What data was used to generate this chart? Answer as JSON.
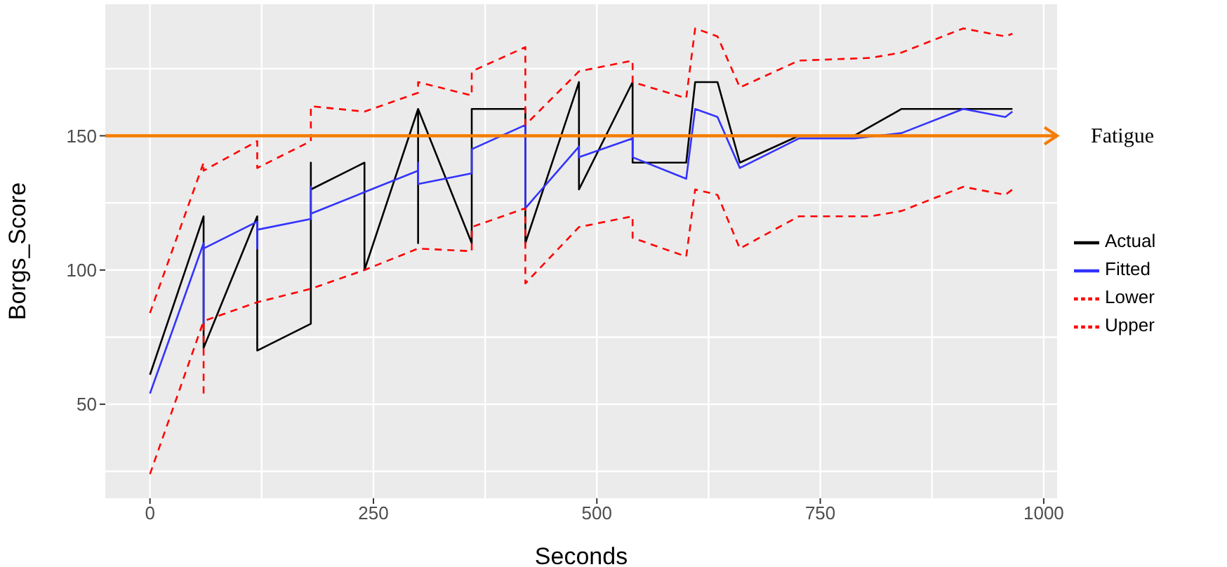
{
  "chart_data": {
    "type": "line",
    "xlabel": "Seconds",
    "ylabel": "Borgs_Score",
    "xlim": [
      -50,
      1015
    ],
    "ylim": [
      15,
      199
    ],
    "xticks": [
      0,
      250,
      500,
      750,
      1000
    ],
    "yticks": [
      50,
      100,
      150
    ],
    "grid": true,
    "legend": "right",
    "marker": "none",
    "series": [
      {
        "name": "Actual",
        "color": "#000000",
        "line_style": "solid",
        "x": [
          0,
          60,
          60,
          120,
          120,
          180,
          180,
          180,
          240,
          240,
          300,
          300,
          300,
          360,
          360,
          420,
          420,
          480,
          480,
          540,
          540,
          600,
          610,
          635,
          660,
          726,
          788,
          841,
          965
        ],
        "values": [
          61,
          120,
          71,
          120,
          70,
          80,
          140,
          130,
          140,
          100,
          160,
          110,
          160,
          110,
          160,
          160,
          110,
          170,
          130,
          170,
          140,
          140,
          170,
          170,
          140,
          150,
          150,
          160,
          160
        ]
      },
      {
        "name": "Fitted",
        "color": "#3333ff",
        "line_style": "solid",
        "x": [
          0,
          60,
          60,
          60,
          120,
          120,
          120,
          180,
          180,
          180,
          240,
          300,
          300,
          300,
          360,
          360,
          420,
          420,
          480,
          480,
          540,
          540,
          600,
          610,
          635,
          660,
          726,
          788,
          841,
          910,
          957,
          965
        ],
        "values": [
          54,
          110,
          80,
          108,
          118,
          108,
          115,
          119,
          131,
          121,
          129,
          137,
          140,
          132,
          136,
          145,
          154,
          123,
          146,
          142,
          149,
          142,
          134,
          160,
          157,
          138,
          149,
          149,
          151,
          160,
          157,
          159
        ]
      },
      {
        "name": "Lower",
        "color": "#ff0000",
        "line_style": "dashed",
        "x": [
          0,
          60,
          60,
          60,
          120,
          180,
          240,
          300,
          300,
          360,
          360,
          420,
          420,
          480,
          540,
          540,
          600,
          610,
          635,
          660,
          726,
          806,
          841,
          910,
          957,
          965
        ],
        "values": [
          24,
          81,
          53,
          81,
          88,
          93,
          100,
          108,
          108,
          107,
          116,
          123,
          95,
          116,
          120,
          112,
          105,
          130,
          128,
          108,
          120,
          120,
          122,
          131,
          128,
          130
        ]
      },
      {
        "name": "Upper",
        "color": "#ff0000",
        "line_style": "dashed",
        "x": [
          0,
          60,
          60,
          120,
          120,
          180,
          180,
          240,
          300,
          300,
          360,
          360,
          420,
          420,
          480,
          540,
          540,
          600,
          610,
          635,
          660,
          726,
          806,
          841,
          910,
          957,
          965
        ],
        "values": [
          84,
          140,
          137,
          148,
          138,
          148,
          161,
          159,
          166,
          170,
          165,
          174,
          183,
          154,
          174,
          178,
          170,
          164,
          190,
          187,
          168,
          178,
          179,
          181,
          190,
          187,
          188
        ]
      }
    ],
    "ref_lines": [
      {
        "axis": "y",
        "value": 150,
        "label": "Fatigue",
        "color": "#f57c00",
        "line_style": "solid"
      }
    ]
  }
}
